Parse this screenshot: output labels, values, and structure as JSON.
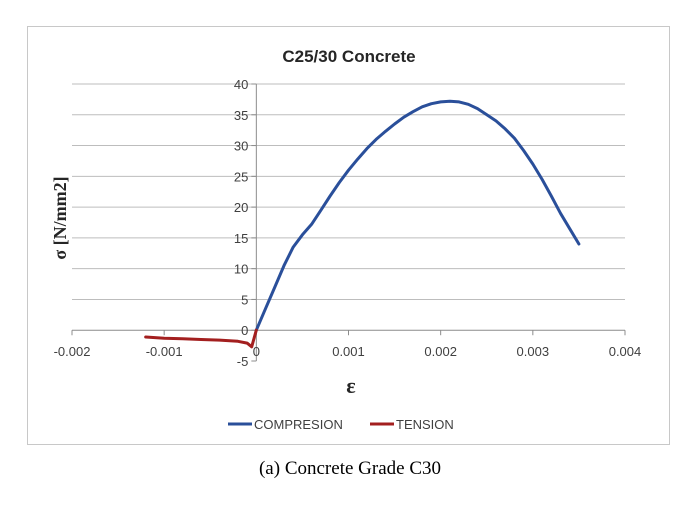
{
  "figure_caption": "(a)  Concrete Grade C30",
  "chart_data": {
    "type": "line",
    "title": "C25/30 Concrete",
    "xlabel": "ε",
    "ylabel": "σ [N/mm2]",
    "xlim": [
      -0.002,
      0.004
    ],
    "ylim": [
      -5,
      40
    ],
    "x_ticks": [
      -0.002,
      -0.001,
      0,
      0.001,
      0.002,
      0.003,
      0.004
    ],
    "x_tick_labels": [
      "-0.002",
      "-0.001",
      "0",
      "0.001",
      "0.002",
      "0.003",
      "0.004"
    ],
    "y_ticks": [
      -5,
      0,
      5,
      10,
      15,
      20,
      25,
      30,
      35,
      40
    ],
    "y_tick_labels": [
      "-5",
      "0",
      "5",
      "10",
      "15",
      "20",
      "25",
      "30",
      "35",
      "40"
    ],
    "grid": "horizontal",
    "legend_position": "bottom",
    "series": [
      {
        "name": "COMPRESION",
        "color": "#2a4f9a",
        "x": [
          0,
          0.0001,
          0.0002,
          0.0003,
          0.0004,
          0.0005,
          0.0006,
          0.0007,
          0.0008,
          0.0009,
          0.001,
          0.0011,
          0.0012,
          0.0013,
          0.0014,
          0.0015,
          0.0016,
          0.0017,
          0.0018,
          0.0019,
          0.002,
          0.0021,
          0.0022,
          0.0023,
          0.0024,
          0.0025,
          0.0026,
          0.0027,
          0.0028,
          0.0029,
          0.003,
          0.0031,
          0.0032,
          0.0033,
          0.0034,
          0.0035
        ],
        "y": [
          0,
          3.5,
          7,
          10.5,
          13.5,
          15.5,
          17.2,
          19.5,
          21.8,
          24,
          26,
          27.8,
          29.5,
          31,
          32.3,
          33.5,
          34.6,
          35.5,
          36.3,
          36.8,
          37.1,
          37.2,
          37.1,
          36.7,
          36,
          35,
          34,
          32.7,
          31.2,
          29.2,
          27,
          24.5,
          21.8,
          19,
          16.5,
          14
        ]
      },
      {
        "name": "TENSION",
        "color": "#a31f1f",
        "x": [
          -0.0012,
          -0.001,
          -0.0008,
          -0.0006,
          -0.0004,
          -0.0002,
          -0.0001,
          -5e-05,
          0
        ],
        "y": [
          -1.1,
          -1.3,
          -1.4,
          -1.5,
          -1.6,
          -1.8,
          -2.1,
          -2.7,
          0
        ]
      }
    ]
  }
}
